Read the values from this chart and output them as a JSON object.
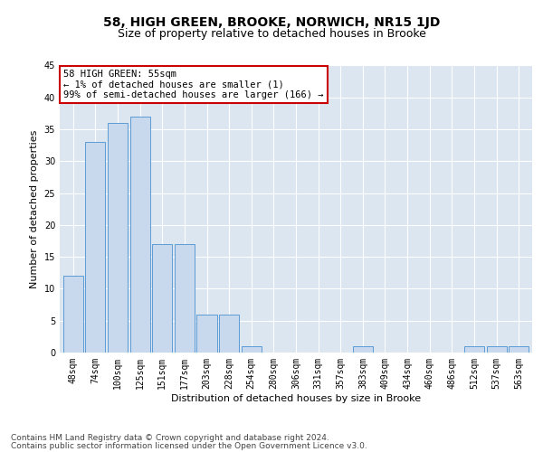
{
  "title": "58, HIGH GREEN, BROOKE, NORWICH, NR15 1JD",
  "subtitle": "Size of property relative to detached houses in Brooke",
  "xlabel": "Distribution of detached houses by size in Brooke",
  "ylabel": "Number of detached properties",
  "categories": [
    "48sqm",
    "74sqm",
    "100sqm",
    "125sqm",
    "151sqm",
    "177sqm",
    "203sqm",
    "228sqm",
    "254sqm",
    "280sqm",
    "306sqm",
    "331sqm",
    "357sqm",
    "383sqm",
    "409sqm",
    "434sqm",
    "460sqm",
    "486sqm",
    "512sqm",
    "537sqm",
    "563sqm"
  ],
  "values": [
    12,
    33,
    36,
    37,
    17,
    17,
    6,
    6,
    1,
    0,
    0,
    0,
    0,
    1,
    0,
    0,
    0,
    0,
    1,
    1,
    1
  ],
  "bar_color": "#c8d9ed",
  "bar_edge_color": "#5b9bd5",
  "background_color": "#dce6f1",
  "annotation_line1": "58 HIGH GREEN: 55sqm",
  "annotation_line2": "← 1% of detached houses are smaller (1)",
  "annotation_line3": "99% of semi-detached houses are larger (166) →",
  "annotation_box_color": "#ffffff",
  "annotation_box_edge_color": "#cc0000",
  "ylim": [
    0,
    45
  ],
  "yticks": [
    0,
    5,
    10,
    15,
    20,
    25,
    30,
    35,
    40,
    45
  ],
  "footer_line1": "Contains HM Land Registry data © Crown copyright and database right 2024.",
  "footer_line2": "Contains public sector information licensed under the Open Government Licence v3.0.",
  "title_fontsize": 10,
  "subtitle_fontsize": 9,
  "tick_fontsize": 7,
  "ylabel_fontsize": 8,
  "xlabel_fontsize": 8,
  "footer_fontsize": 6.5,
  "annotation_fontsize": 7.5
}
